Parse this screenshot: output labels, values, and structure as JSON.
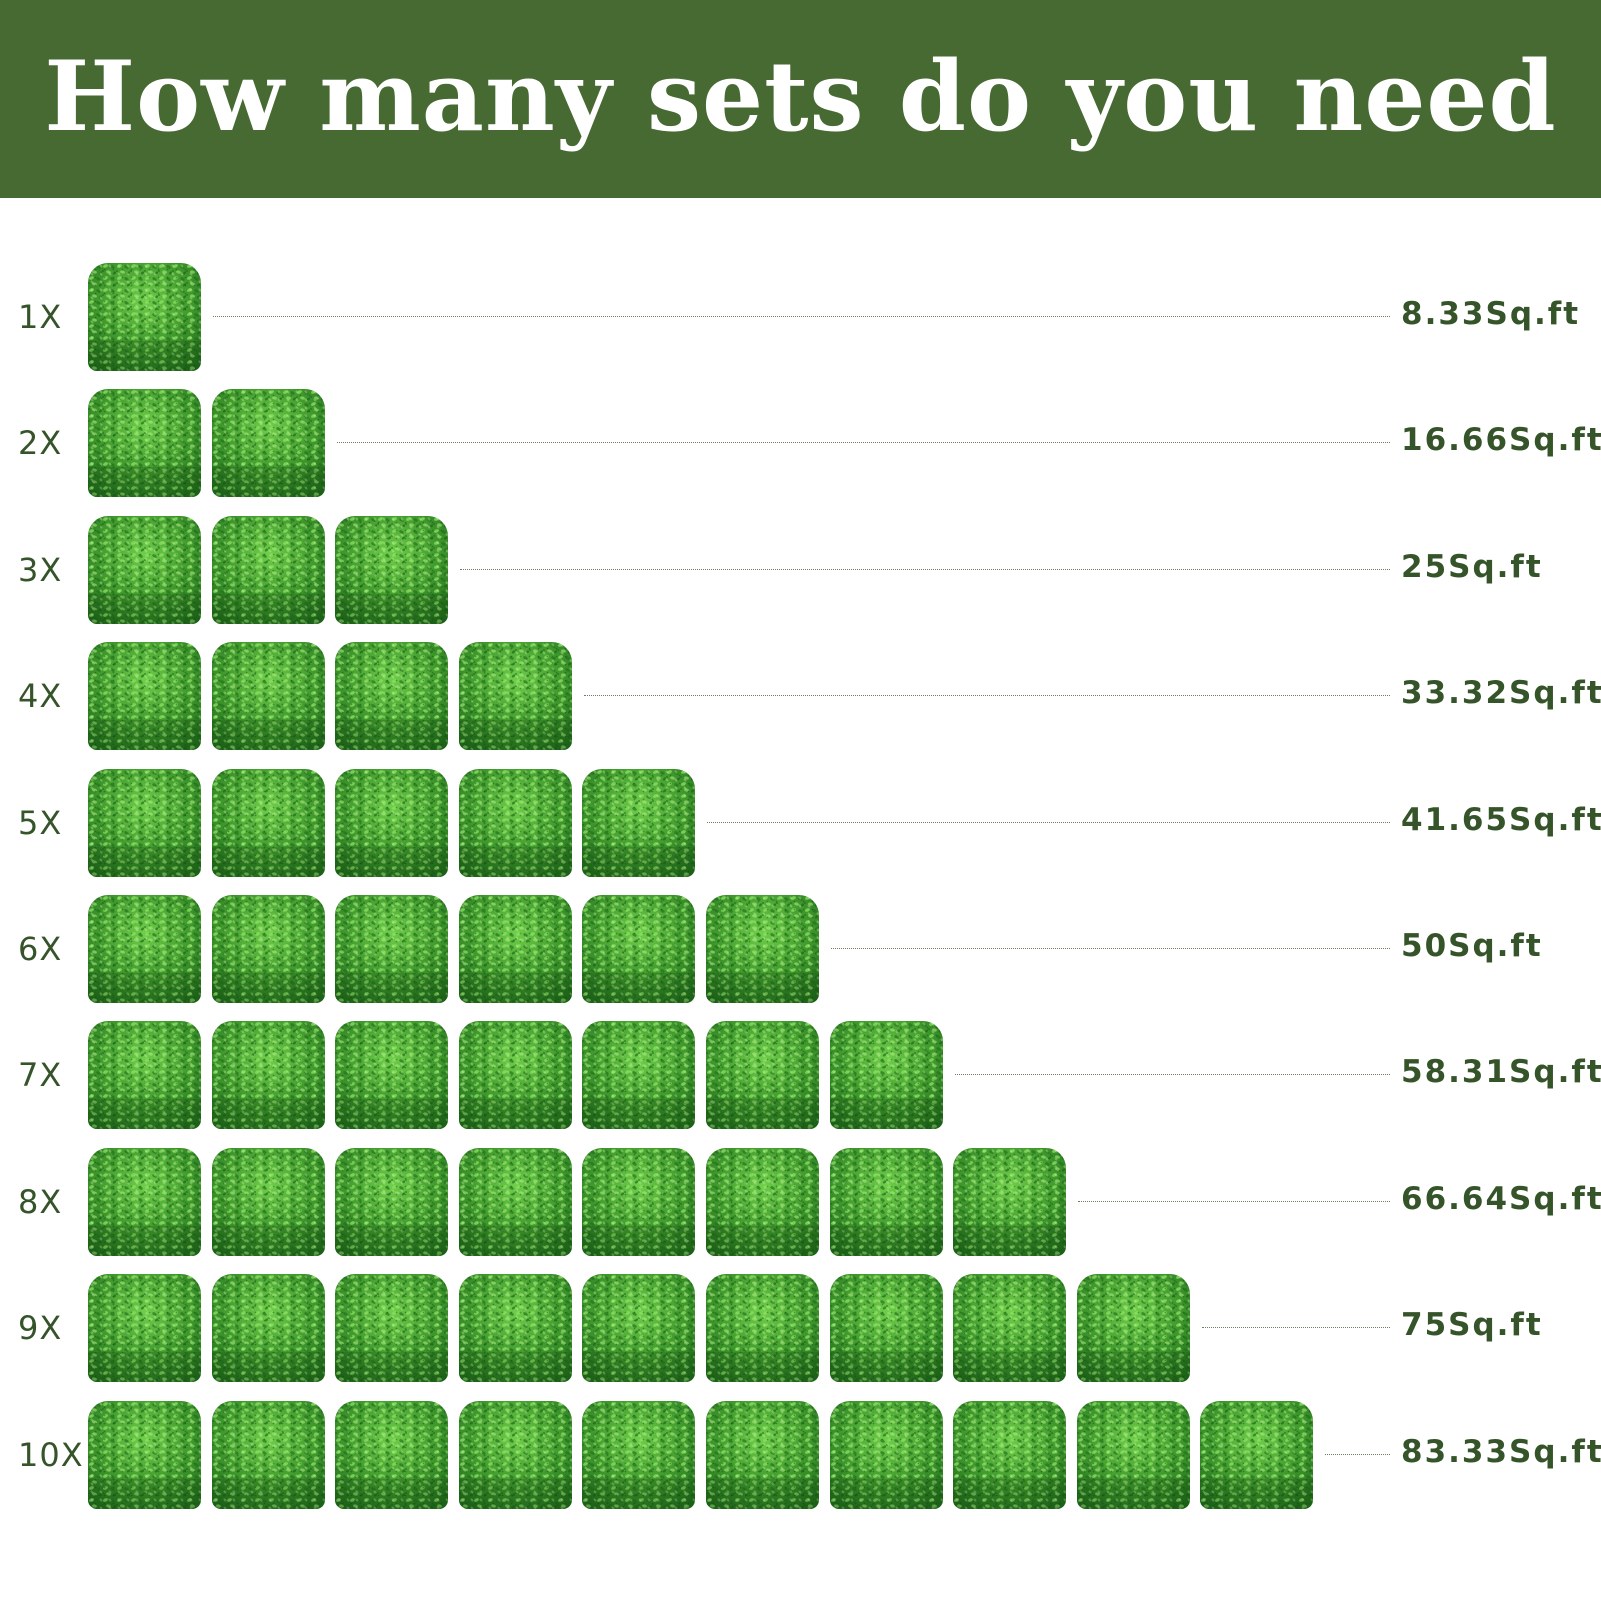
{
  "header": {
    "title": "How many sets do you need",
    "background_color": "#466a32",
    "text_color": "#ffffff"
  },
  "item_icon": "boxwood-panel-icon",
  "text_color": "#36542a",
  "rows": [
    {
      "label": "1X",
      "count": 1,
      "area": "8.33Sq.ft"
    },
    {
      "label": "2X",
      "count": 2,
      "area": "16.66Sq.ft"
    },
    {
      "label": "3X",
      "count": 3,
      "area": "25Sq.ft"
    },
    {
      "label": "4X",
      "count": 4,
      "area": "33.32Sq.ft"
    },
    {
      "label": "5X",
      "count": 5,
      "area": "41.65Sq.ft"
    },
    {
      "label": "6X",
      "count": 6,
      "area": "50Sq.ft"
    },
    {
      "label": "7X",
      "count": 7,
      "area": "58.31Sq.ft"
    },
    {
      "label": "8X",
      "count": 8,
      "area": "66.64Sq.ft"
    },
    {
      "label": "9X",
      "count": 9,
      "area": "75Sq.ft"
    },
    {
      "label": "10X",
      "count": 10,
      "area": "83.33Sq.ft"
    }
  ]
}
